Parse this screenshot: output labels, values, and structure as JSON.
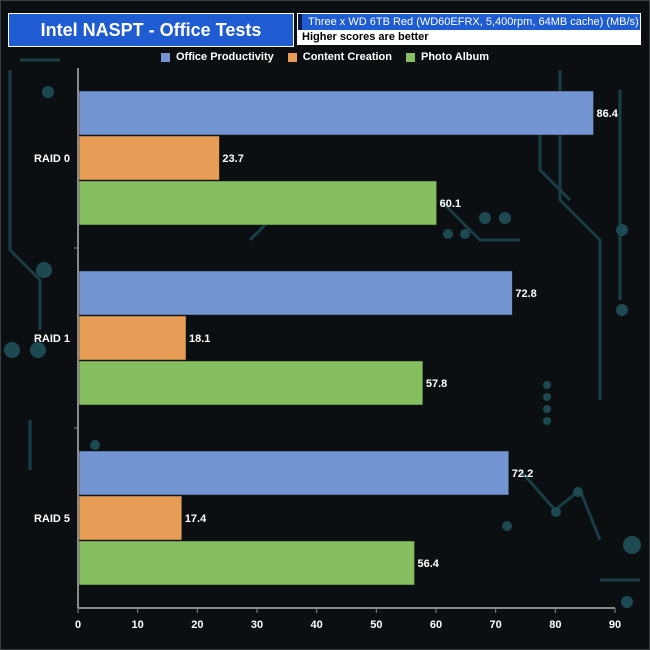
{
  "chart_data": {
    "type": "bar",
    "orientation": "horizontal",
    "title": "Intel NASPT - Office Tests",
    "subtitle": "Three x WD 6TB Red (WD60EFRX, 5,400rpm, 64MB cache) (MB/s)",
    "note": "Higher scores are better",
    "categories": [
      "RAID 0",
      "RAID 1",
      "RAID 5"
    ],
    "series": [
      {
        "name": "Office Productivity",
        "color": "#7396d2",
        "values": [
          86.4,
          72.8,
          72.2
        ]
      },
      {
        "name": "Content Creation",
        "color": "#e79d56",
        "values": [
          23.7,
          18.1,
          17.4
        ]
      },
      {
        "name": "Photo Album",
        "color": "#86bf5f",
        "values": [
          60.1,
          57.8,
          56.4
        ]
      }
    ],
    "xlim": [
      0,
      90
    ],
    "xticks": [
      0,
      10,
      20,
      30,
      40,
      50,
      60,
      70,
      80,
      90
    ],
    "legend_position": "top-center",
    "grid": false
  }
}
